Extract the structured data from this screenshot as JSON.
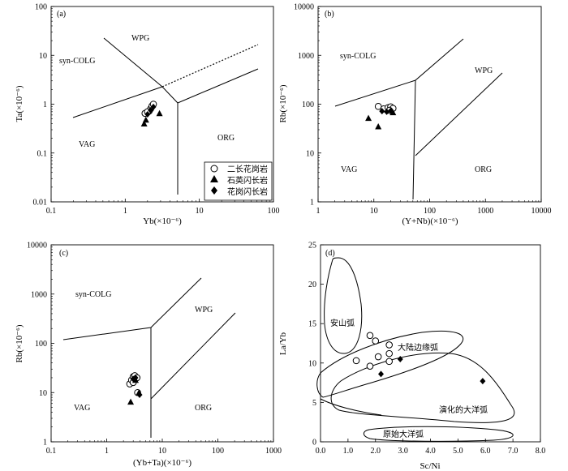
{
  "chart_data": [
    {
      "type": "scatter",
      "panel": "(a)",
      "xlabel": "Yb(×10⁻⁶)",
      "ylabel": "Ta(×10⁻⁶)",
      "xscale": "log",
      "yscale": "log",
      "xlim": [
        0.1,
        100
      ],
      "ylim": [
        0.01,
        100
      ],
      "xticks": [
        "0.1",
        "1",
        "10",
        "100"
      ],
      "yticks": [
        "0.01",
        "0.1",
        "1",
        "10",
        "100"
      ],
      "field_labels": [
        "WPG",
        "syn-COLG",
        "VAG",
        "ORG"
      ],
      "legend": [
        {
          "marker": "circle",
          "label": "二长花岗岩"
        },
        {
          "marker": "triangle",
          "label": "石英闪长岩"
        },
        {
          "marker": "diamond",
          "label": "花岗闪长岩"
        }
      ],
      "series": [
        {
          "name": "二长花岗岩",
          "marker": "circle",
          "points": [
            [
              1.85,
              0.65
            ],
            [
              2.1,
              0.72
            ],
            [
              2.2,
              0.8
            ],
            [
              2.3,
              0.92
            ],
            [
              2.4,
              1.0
            ],
            [
              2.0,
              0.7
            ]
          ]
        },
        {
          "name": "石英闪长岩",
          "marker": "triangle",
          "points": [
            [
              1.8,
              0.4
            ],
            [
              1.9,
              0.48
            ],
            [
              2.9,
              0.65
            ]
          ]
        },
        {
          "name": "花岗闪长岩",
          "marker": "diamond",
          "points": [
            [
              2.2,
              0.75
            ],
            [
              2.4,
              0.88
            ],
            [
              2.0,
              0.62
            ]
          ]
        }
      ]
    },
    {
      "type": "scatter",
      "panel": "(b)",
      "xlabel": "(Y+Nb)(×10⁻⁶)",
      "ylabel": "Rb(×10⁻⁶)",
      "xscale": "log",
      "yscale": "log",
      "xlim": [
        1,
        10000
      ],
      "ylim": [
        1,
        10000
      ],
      "xticks": [
        "1",
        "10",
        "100",
        "1000",
        "10000"
      ],
      "yticks": [
        "1",
        "10",
        "100",
        "1000",
        "10000"
      ],
      "field_labels": [
        "syn-COLG",
        "WPG",
        "VAG",
        "ORG"
      ],
      "series": [
        {
          "name": "二长花岗岩",
          "marker": "circle",
          "points": [
            [
              12,
              90
            ],
            [
              15,
              80
            ],
            [
              18,
              85
            ],
            [
              20,
              88
            ],
            [
              22,
              82
            ],
            [
              19,
              75
            ]
          ]
        },
        {
          "name": "石英闪长岩",
          "marker": "triangle",
          "points": [
            [
              8,
              52
            ],
            [
              12,
              35
            ],
            [
              22,
              68
            ]
          ]
        },
        {
          "name": "花岗闪长岩",
          "marker": "diamond",
          "points": [
            [
              14,
              72
            ],
            [
              17,
              70
            ],
            [
              20,
              73
            ]
          ]
        }
      ]
    },
    {
      "type": "scatter",
      "panel": "(c)",
      "xlabel": "(Yb+Ta)(×10⁻⁶)",
      "ylabel": "Rb(×10⁻⁶)",
      "xscale": "log",
      "yscale": "log",
      "xlim": [
        0.1,
        1000
      ],
      "ylim": [
        1,
        10000
      ],
      "xticks": [
        "0.1",
        "1",
        "10",
        "100",
        "1000"
      ],
      "yticks": [
        "1",
        "10",
        "100",
        "1000",
        "10000"
      ],
      "field_labels": [
        "syn-COLG",
        "WPG",
        "VAG",
        "ORG"
      ],
      "series": [
        {
          "name": "二长花岗岩",
          "marker": "circle",
          "points": [
            [
              2.6,
              15
            ],
            [
              2.8,
              18
            ],
            [
              3.0,
              21
            ],
            [
              3.2,
              22
            ],
            [
              3.5,
              20
            ],
            [
              3.0,
              16
            ],
            [
              3.6,
              10
            ]
          ]
        },
        {
          "name": "石英闪长岩",
          "marker": "triangle",
          "points": [
            [
              2.7,
              6.5
            ],
            [
              3.8,
              10
            ],
            [
              3.3,
              18
            ]
          ]
        },
        {
          "name": "花岗闪长岩",
          "marker": "diamond",
          "points": [
            [
              3.0,
              19
            ],
            [
              3.3,
              20
            ],
            [
              3.9,
              9
            ]
          ]
        }
      ]
    },
    {
      "type": "scatter",
      "panel": "(d)",
      "xlabel": "Sc/Ni",
      "ylabel": "La/Yb",
      "xscale": "linear",
      "yscale": "linear",
      "xlim": [
        0,
        8
      ],
      "ylim": [
        0,
        25
      ],
      "xticks": [
        "0.0",
        "1.0",
        "2.0",
        "3.0",
        "4.0",
        "5.0",
        "6.0",
        "7.0",
        "8.0"
      ],
      "yticks": [
        "0",
        "5",
        "10",
        "15",
        "20",
        "25"
      ],
      "field_labels": [
        "安山弧",
        "大陆边缘弧",
        "演化的大洋弧",
        "原始大洋弧"
      ],
      "series": [
        {
          "name": "二长花岗岩",
          "marker": "circle",
          "points": [
            [
              1.3,
              10.3
            ],
            [
              1.8,
              13.5
            ],
            [
              2.0,
              12.8
            ],
            [
              2.1,
              10.8
            ],
            [
              2.5,
              12.3
            ],
            [
              2.5,
              11.2
            ],
            [
              2.5,
              10.2
            ],
            [
              1.8,
              9.6
            ]
          ]
        },
        {
          "name": "花岗闪长岩",
          "marker": "diamond",
          "points": [
            [
              2.2,
              8.6
            ],
            [
              2.9,
              10.5
            ],
            [
              5.9,
              7.7
            ]
          ]
        }
      ]
    }
  ]
}
